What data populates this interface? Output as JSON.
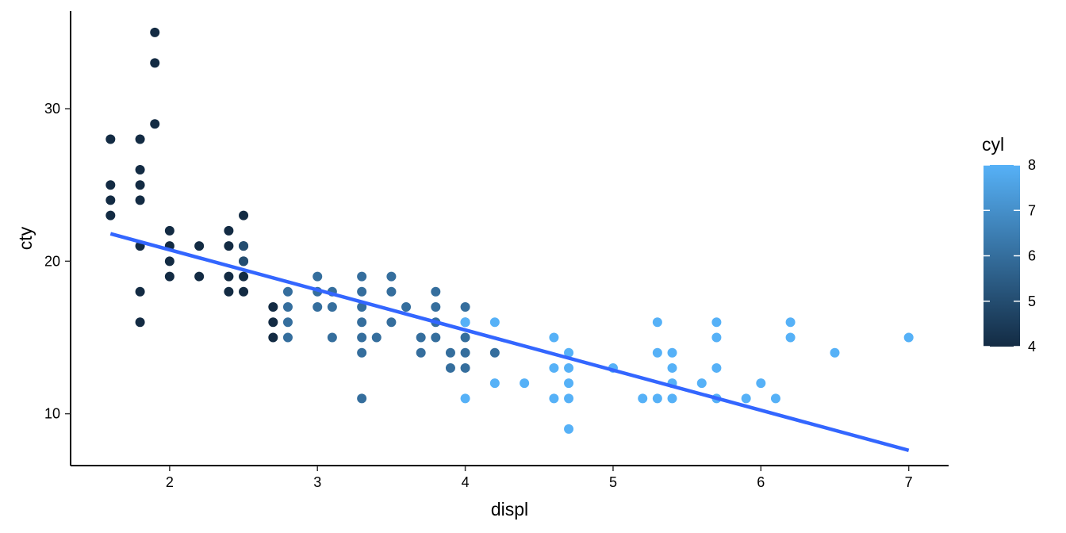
{
  "chart_data": {
    "type": "scatter",
    "title": "",
    "xlabel": "displ",
    "ylabel": "cty",
    "xlim": [
      1.33,
      7.27
    ],
    "ylim": [
      6.6,
      36.4
    ],
    "xticks": [
      2,
      3,
      4,
      5,
      6,
      7
    ],
    "yticks": [
      10,
      20,
      30
    ],
    "grid": false,
    "legend": {
      "title": "cyl",
      "position": "right",
      "type": "colorbar",
      "min": 4,
      "max": 8,
      "ticks": [
        4,
        5,
        6,
        7,
        8
      ],
      "colors": {
        "low": "#132b43",
        "high": "#56b1f7"
      }
    },
    "trend_line": {
      "method": "lm",
      "color": "#3366ff",
      "x": [
        1.6,
        7.0
      ],
      "y": [
        21.8,
        7.6
      ]
    },
    "points": [
      {
        "x": 1.6,
        "y": 28,
        "cyl": 4
      },
      {
        "x": 1.6,
        "y": 25,
        "cyl": 4
      },
      {
        "x": 1.6,
        "y": 24,
        "cyl": 4
      },
      {
        "x": 1.6,
        "y": 23,
        "cyl": 4
      },
      {
        "x": 1.8,
        "y": 28,
        "cyl": 4
      },
      {
        "x": 1.8,
        "y": 26,
        "cyl": 4
      },
      {
        "x": 1.8,
        "y": 25,
        "cyl": 4
      },
      {
        "x": 1.8,
        "y": 24,
        "cyl": 4
      },
      {
        "x": 1.8,
        "y": 21,
        "cyl": 4
      },
      {
        "x": 1.8,
        "y": 18,
        "cyl": 4
      },
      {
        "x": 1.8,
        "y": 16,
        "cyl": 4
      },
      {
        "x": 1.9,
        "y": 35,
        "cyl": 4
      },
      {
        "x": 1.9,
        "y": 33,
        "cyl": 4
      },
      {
        "x": 1.9,
        "y": 29,
        "cyl": 4
      },
      {
        "x": 2.0,
        "y": 22,
        "cyl": 4
      },
      {
        "x": 2.0,
        "y": 21,
        "cyl": 4
      },
      {
        "x": 2.0,
        "y": 20,
        "cyl": 4
      },
      {
        "x": 2.0,
        "y": 19,
        "cyl": 4
      },
      {
        "x": 2.2,
        "y": 21,
        "cyl": 4
      },
      {
        "x": 2.2,
        "y": 19,
        "cyl": 4
      },
      {
        "x": 2.4,
        "y": 22,
        "cyl": 4
      },
      {
        "x": 2.4,
        "y": 21,
        "cyl": 4
      },
      {
        "x": 2.4,
        "y": 19,
        "cyl": 4
      },
      {
        "x": 2.4,
        "y": 18,
        "cyl": 4
      },
      {
        "x": 2.5,
        "y": 23,
        "cyl": 4
      },
      {
        "x": 2.5,
        "y": 21,
        "cyl": 4
      },
      {
        "x": 2.5,
        "y": 20,
        "cyl": 4
      },
      {
        "x": 2.5,
        "y": 19,
        "cyl": 4
      },
      {
        "x": 2.5,
        "y": 18,
        "cyl": 4
      },
      {
        "x": 2.5,
        "y": 20,
        "cyl": 5
      },
      {
        "x": 2.5,
        "y": 21,
        "cyl": 5
      },
      {
        "x": 2.7,
        "y": 17,
        "cyl": 4
      },
      {
        "x": 2.7,
        "y": 16,
        "cyl": 4
      },
      {
        "x": 2.7,
        "y": 15,
        "cyl": 4
      },
      {
        "x": 2.8,
        "y": 18,
        "cyl": 6
      },
      {
        "x": 2.8,
        "y": 17,
        "cyl": 6
      },
      {
        "x": 2.8,
        "y": 16,
        "cyl": 6
      },
      {
        "x": 2.8,
        "y": 15,
        "cyl": 6
      },
      {
        "x": 3.0,
        "y": 19,
        "cyl": 6
      },
      {
        "x": 3.0,
        "y": 18,
        "cyl": 6
      },
      {
        "x": 3.0,
        "y": 17,
        "cyl": 6
      },
      {
        "x": 3.1,
        "y": 18,
        "cyl": 6
      },
      {
        "x": 3.1,
        "y": 17,
        "cyl": 6
      },
      {
        "x": 3.1,
        "y": 15,
        "cyl": 6
      },
      {
        "x": 3.3,
        "y": 19,
        "cyl": 6
      },
      {
        "x": 3.3,
        "y": 18,
        "cyl": 6
      },
      {
        "x": 3.3,
        "y": 17,
        "cyl": 6
      },
      {
        "x": 3.3,
        "y": 16,
        "cyl": 6
      },
      {
        "x": 3.3,
        "y": 15,
        "cyl": 6
      },
      {
        "x": 3.3,
        "y": 14,
        "cyl": 6
      },
      {
        "x": 3.3,
        "y": 11,
        "cyl": 6
      },
      {
        "x": 3.4,
        "y": 15,
        "cyl": 6
      },
      {
        "x": 3.5,
        "y": 19,
        "cyl": 6
      },
      {
        "x": 3.5,
        "y": 18,
        "cyl": 6
      },
      {
        "x": 3.5,
        "y": 16,
        "cyl": 6
      },
      {
        "x": 3.6,
        "y": 17,
        "cyl": 6
      },
      {
        "x": 3.7,
        "y": 15,
        "cyl": 6
      },
      {
        "x": 3.7,
        "y": 14,
        "cyl": 6
      },
      {
        "x": 3.8,
        "y": 18,
        "cyl": 6
      },
      {
        "x": 3.8,
        "y": 17,
        "cyl": 6
      },
      {
        "x": 3.8,
        "y": 16,
        "cyl": 6
      },
      {
        "x": 3.8,
        "y": 15,
        "cyl": 6
      },
      {
        "x": 3.9,
        "y": 14,
        "cyl": 6
      },
      {
        "x": 3.9,
        "y": 13,
        "cyl": 6
      },
      {
        "x": 4.0,
        "y": 17,
        "cyl": 6
      },
      {
        "x": 4.0,
        "y": 16,
        "cyl": 6
      },
      {
        "x": 4.0,
        "y": 15,
        "cyl": 6
      },
      {
        "x": 4.0,
        "y": 14,
        "cyl": 6
      },
      {
        "x": 4.0,
        "y": 13,
        "cyl": 6
      },
      {
        "x": 4.0,
        "y": 16,
        "cyl": 8
      },
      {
        "x": 4.0,
        "y": 11,
        "cyl": 8
      },
      {
        "x": 4.2,
        "y": 16,
        "cyl": 8
      },
      {
        "x": 4.2,
        "y": 14,
        "cyl": 6
      },
      {
        "x": 4.2,
        "y": 12,
        "cyl": 8
      },
      {
        "x": 4.4,
        "y": 12,
        "cyl": 8
      },
      {
        "x": 4.6,
        "y": 15,
        "cyl": 8
      },
      {
        "x": 4.6,
        "y": 13,
        "cyl": 8
      },
      {
        "x": 4.6,
        "y": 11,
        "cyl": 8
      },
      {
        "x": 4.7,
        "y": 14,
        "cyl": 8
      },
      {
        "x": 4.7,
        "y": 13,
        "cyl": 8
      },
      {
        "x": 4.7,
        "y": 12,
        "cyl": 8
      },
      {
        "x": 4.7,
        "y": 11,
        "cyl": 8
      },
      {
        "x": 4.7,
        "y": 9,
        "cyl": 8
      },
      {
        "x": 5.0,
        "y": 13,
        "cyl": 8
      },
      {
        "x": 5.2,
        "y": 11,
        "cyl": 8
      },
      {
        "x": 5.3,
        "y": 16,
        "cyl": 8
      },
      {
        "x": 5.3,
        "y": 14,
        "cyl": 8
      },
      {
        "x": 5.3,
        "y": 11,
        "cyl": 8
      },
      {
        "x": 5.4,
        "y": 14,
        "cyl": 8
      },
      {
        "x": 5.4,
        "y": 13,
        "cyl": 8
      },
      {
        "x": 5.4,
        "y": 12,
        "cyl": 8
      },
      {
        "x": 5.4,
        "y": 11,
        "cyl": 8
      },
      {
        "x": 5.6,
        "y": 12,
        "cyl": 8
      },
      {
        "x": 5.7,
        "y": 16,
        "cyl": 8
      },
      {
        "x": 5.7,
        "y": 15,
        "cyl": 8
      },
      {
        "x": 5.7,
        "y": 13,
        "cyl": 8
      },
      {
        "x": 5.7,
        "y": 11,
        "cyl": 8
      },
      {
        "x": 5.9,
        "y": 11,
        "cyl": 8
      },
      {
        "x": 6.0,
        "y": 12,
        "cyl": 8
      },
      {
        "x": 6.1,
        "y": 11,
        "cyl": 8
      },
      {
        "x": 6.2,
        "y": 16,
        "cyl": 8
      },
      {
        "x": 6.2,
        "y": 15,
        "cyl": 8
      },
      {
        "x": 6.5,
        "y": 14,
        "cyl": 8
      },
      {
        "x": 7.0,
        "y": 15,
        "cyl": 8
      }
    ]
  }
}
